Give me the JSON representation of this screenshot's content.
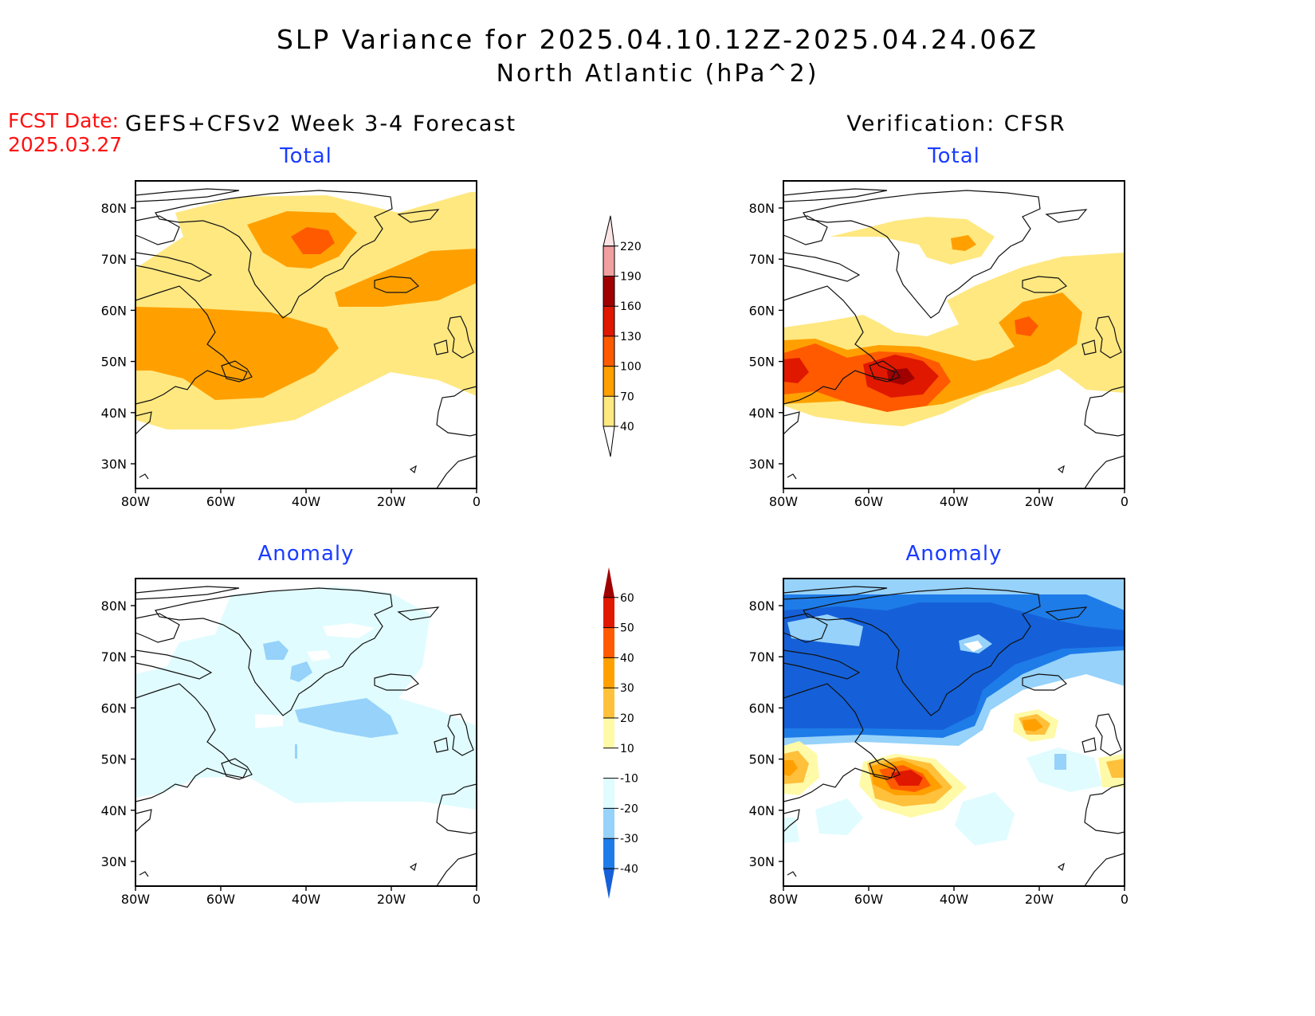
{
  "header": {
    "title": "SLP Variance for 2025.04.10.12Z-2025.04.24.06Z",
    "subtitle": "North Atlantic (hPa^2)",
    "fcst_label": "FCST Date:",
    "fcst_date": "2025.03.27"
  },
  "columns": {
    "left": "GEFS+CFSv2 Week 3-4 Forecast",
    "right": "Verification: CFSR"
  },
  "panels": {
    "fcst_total": "Total",
    "fcst_anomaly": "Anomaly",
    "ver_total": "Total",
    "ver_anomaly": "Anomaly"
  },
  "axes": {
    "lat_labels": [
      "80N",
      "70N",
      "60N",
      "50N",
      "40N",
      "30N"
    ],
    "lon_labels": [
      "80W",
      "60W",
      "40W",
      "20W",
      "0"
    ]
  },
  "colorbars": {
    "total": {
      "levels": [
        "40",
        "70",
        "100",
        "130",
        "160",
        "190",
        "220"
      ],
      "colors": [
        "#ffe880",
        "#ffa000",
        "#ff5a00",
        "#e01800",
        "#a00000",
        "#f0a0a0",
        "#fbe4e4"
      ]
    },
    "anomaly": {
      "levels": [
        "-40",
        "-30",
        "-20",
        "-10",
        "10",
        "20",
        "30",
        "40",
        "50",
        "60"
      ],
      "colors": [
        "#1560d8",
        "#1e7ce8",
        "#96d2fa",
        "#e0fcff",
        "#ffffff",
        "#fffaa8",
        "#ffc03c",
        "#ffa000",
        "#ff5a00",
        "#e01800",
        "#a00000"
      ]
    }
  },
  "colors": {
    "title_blue": "#1a3cff",
    "fcst_red": "#ff1010"
  }
}
